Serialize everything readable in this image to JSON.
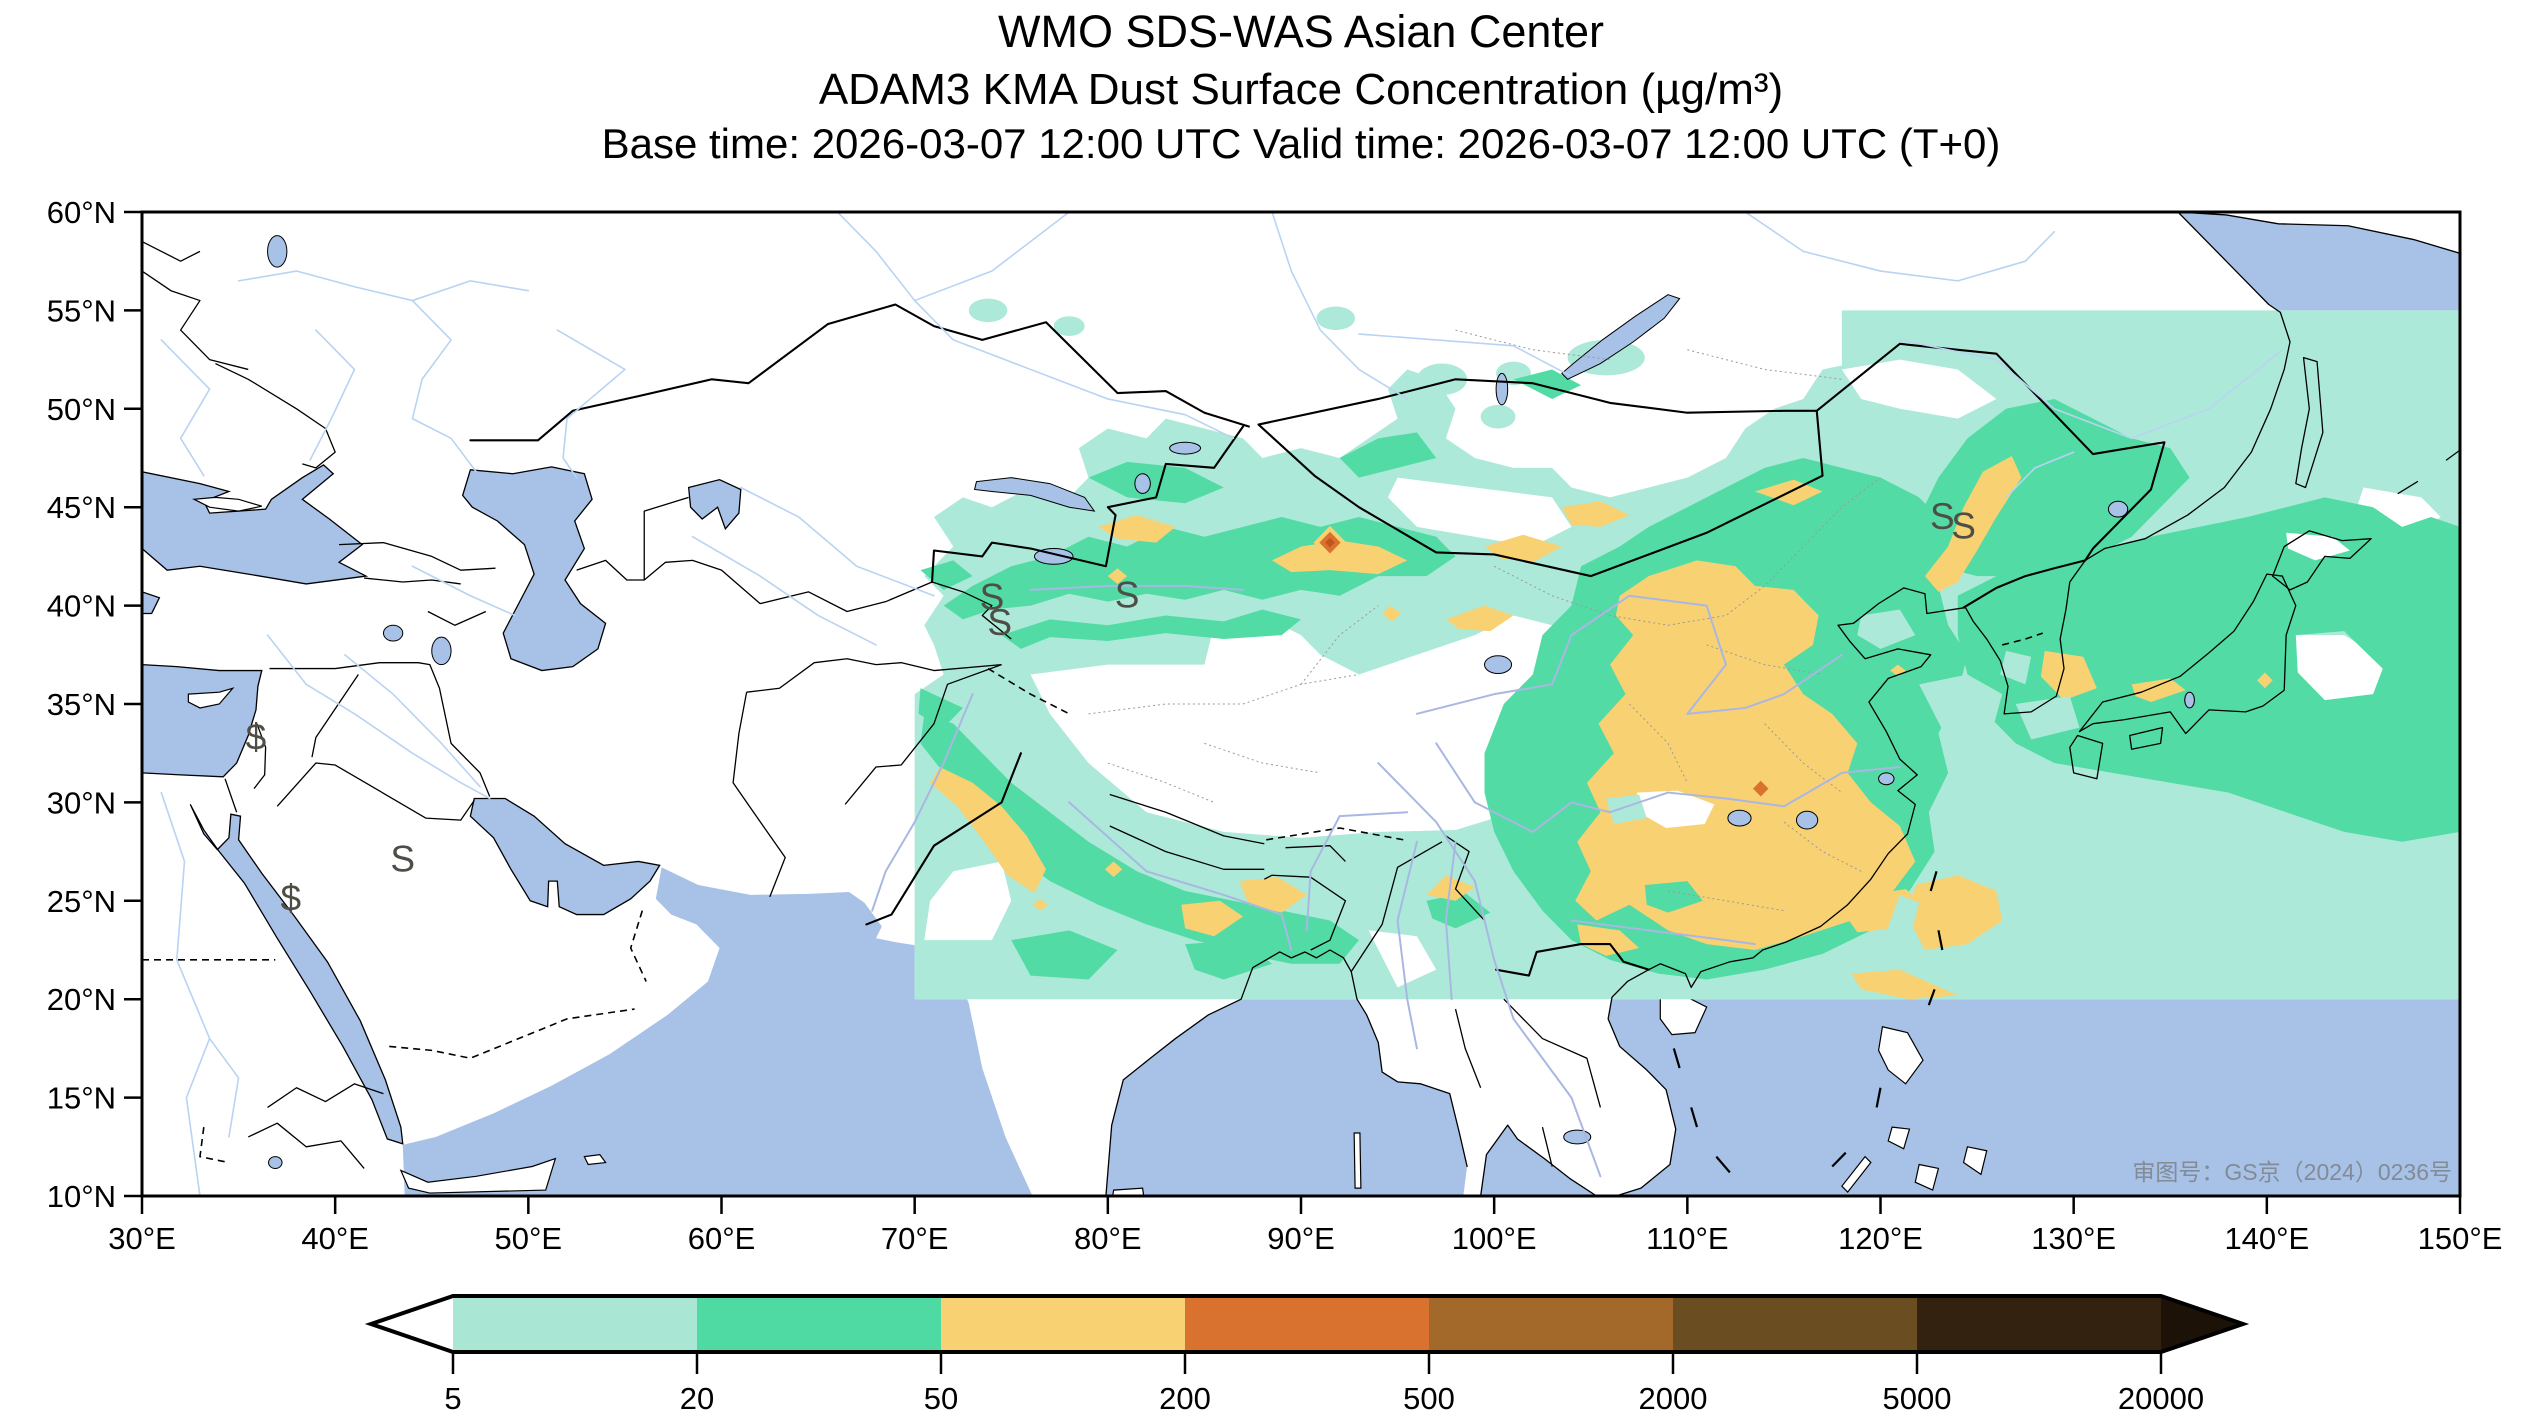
{
  "header": {
    "line1": "WMO SDS-WAS Asian Center",
    "line2": "ADAM3 KMA Dust Surface Concentration (µg/m³)",
    "line3": "Base time: 2026-03-07 12:00 UTC Valid time: 2026-03-07 12:00 UTC (T+0)"
  },
  "axes": {
    "x_ticks": [
      "30°E",
      "40°E",
      "50°E",
      "60°E",
      "70°E",
      "80°E",
      "90°E",
      "100°E",
      "110°E",
      "120°E",
      "130°E",
      "140°E",
      "150°E"
    ],
    "y_ticks": [
      "60°N",
      "55°N",
      "50°N",
      "45°N",
      "40°N",
      "35°N",
      "30°N",
      "25°N",
      "20°N",
      "15°N",
      "10°N"
    ]
  },
  "colorbar": {
    "tick_labels": [
      "5",
      "20",
      "50",
      "200",
      "500",
      "2000",
      "5000",
      "20000"
    ],
    "segment_colors": [
      "#a9e6d3",
      "#4fd9a3",
      "#f8d173",
      "#d9722e",
      "#a2692b",
      "#6b4d22",
      "#33220f"
    ],
    "left_arrow_color": "#ffffff",
    "right_arrow_color": "#1c1208"
  },
  "map": {
    "attribution": "审图号：GS京（2024）0236号",
    "extent": {
      "lon_min": 30,
      "lon_max": 150,
      "lat_min": 10,
      "lat_max": 60
    },
    "model_domain": {
      "lon_min": 70,
      "lon_max": 150,
      "lat_min": 20,
      "lat_max": 55
    },
    "dust_levels": [
      {
        "range_ugm3": "5-20",
        "color": "#ade9d8"
      },
      {
        "range_ugm3": "20-50",
        "color": "#52dba5"
      },
      {
        "range_ugm3": "50-200",
        "color": "#f8d173"
      },
      {
        "range_ugm3": "200-500",
        "color": "#d9722e"
      },
      {
        "range_ugm3": "500-2000",
        "color": "#a2692b"
      },
      {
        "range_ugm3": "2000-5000",
        "color": "#6b4d22"
      },
      {
        "range_ugm3": "5000-20000",
        "color": "#33220f"
      }
    ],
    "storm_symbols": [
      {
        "lon": 74.0,
        "lat": 39.8,
        "glyph": "S"
      },
      {
        "lon": 74.4,
        "lat": 38.5,
        "glyph": "S"
      },
      {
        "lon": 81.0,
        "lat": 39.9,
        "glyph": "S"
      },
      {
        "lon": 123.2,
        "lat": 43.9,
        "glyph": "S"
      },
      {
        "lon": 124.3,
        "lat": 43.4,
        "glyph": "S"
      },
      {
        "lon": 43.5,
        "lat": 26.5,
        "glyph": "S"
      },
      {
        "lon": 35.9,
        "lat": 32.7,
        "glyph": "$"
      },
      {
        "lon": 37.7,
        "lat": 24.5,
        "glyph": "$"
      }
    ]
  },
  "colors": {
    "sea": "#a7c1e7",
    "land": "#ffffff",
    "lvl1": "#ade9d8",
    "lvl2": "#52dba5",
    "lvl3": "#f8d173",
    "lvl4": "#d9722e",
    "lvl4_core": "#c2541c",
    "coast": "#000000",
    "border": "#000000",
    "river": "#b9d3f2",
    "river_domain": "#a9b7e2",
    "province": "#999999",
    "symbol": "#4f4e46",
    "attribution_text": "#828b96"
  }
}
